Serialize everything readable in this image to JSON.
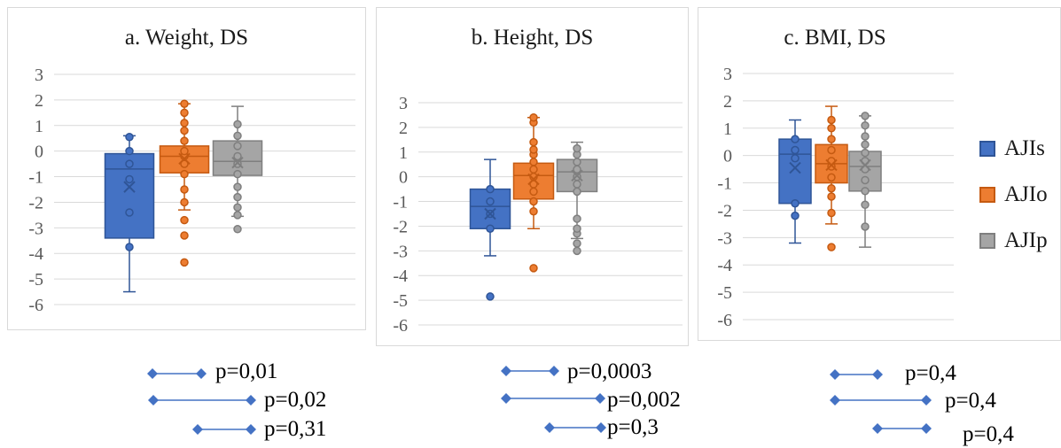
{
  "chart_data": [
    {
      "type": "box",
      "title": "a. Weight, DS",
      "categories": [
        "AJIs",
        "AJIo",
        "AJIp"
      ],
      "ylim": [
        -6,
        3
      ],
      "yticks": [
        "3",
        "2",
        "1",
        "0",
        "-1",
        "-2",
        "-3",
        "-4",
        "-5",
        "-6"
      ],
      "grid": true,
      "series": [
        {
          "name": "AJIs",
          "color": "#4472c4",
          "min": -5.5,
          "q1": -3.4,
          "median": -0.7,
          "q3": -0.1,
          "max": 0.6,
          "mean": -1.4,
          "points": [
            -3.75,
            -2.4,
            -1.1,
            -0.5,
            0.0,
            0.55
          ]
        },
        {
          "name": "AJIo",
          "color": "#ed7d31",
          "min": -2.3,
          "q1": -0.85,
          "median": -0.2,
          "q3": 0.2,
          "max": 1.85,
          "mean": -0.3,
          "points": [
            -4.35,
            -3.3,
            -2.7,
            -2.0,
            -1.5,
            -0.9,
            -0.5,
            -0.2,
            0.0,
            0.4,
            0.8,
            1.1,
            1.5,
            1.85
          ]
        },
        {
          "name": "AJIp",
          "color": "#a5a5a5",
          "min": -2.55,
          "q1": -0.95,
          "median": -0.4,
          "q3": 0.4,
          "max": 1.75,
          "mean": -0.45,
          "points": [
            -3.05,
            -2.5,
            -2.2,
            -1.8,
            -1.4,
            -0.9,
            -0.5,
            -0.2,
            0.2,
            0.6,
            1.05
          ]
        }
      ],
      "significance": [
        {
          "label": "p=0,01",
          "from": "AJIs",
          "to": "AJIo"
        },
        {
          "label": "p=0,02",
          "from": "AJIs",
          "to": "AJIp"
        },
        {
          "label": "p=0,31",
          "from": "AJIo",
          "to": "AJIp"
        }
      ]
    },
    {
      "type": "box",
      "title": "b. Height, DS",
      "categories": [
        "AJIs",
        "AJIo",
        "AJIp"
      ],
      "ylim": [
        -6,
        3
      ],
      "yticks": [
        "3",
        "2",
        "1",
        "0",
        "-1",
        "-2",
        "-3",
        "-4",
        "-5",
        "-6"
      ],
      "grid": true,
      "series": [
        {
          "name": "AJIs",
          "color": "#4472c4",
          "min": -3.2,
          "q1": -2.1,
          "median": -1.2,
          "q3": -0.5,
          "max": 0.7,
          "mean": -1.5,
          "points": [
            -4.85,
            -2.1,
            -1.5,
            -1.0,
            -0.5
          ]
        },
        {
          "name": "AJIo",
          "color": "#ed7d31",
          "min": -2.1,
          "q1": -0.9,
          "median": 0.05,
          "q3": 0.55,
          "max": 2.4,
          "mean": -0.1,
          "points": [
            -3.7,
            -1.4,
            -1.0,
            -0.6,
            -0.3,
            0.0,
            0.3,
            0.6,
            0.9,
            1.1,
            1.4,
            2.2,
            2.4
          ]
        },
        {
          "name": "AJIp",
          "color": "#a5a5a5",
          "min": -2.5,
          "q1": -0.6,
          "median": 0.2,
          "q3": 0.7,
          "max": 1.4,
          "mean": 0.05,
          "points": [
            -3.0,
            -2.7,
            -2.3,
            -2.1,
            -1.7,
            -0.6,
            -0.3,
            0.0,
            0.3,
            0.6,
            0.9,
            1.15
          ]
        }
      ],
      "significance": [
        {
          "label": "p=0,0003",
          "from": "AJIs",
          "to": "AJIo"
        },
        {
          "label": "p=0,002",
          "from": "AJIs",
          "to": "AJIp"
        },
        {
          "label": "p=0,3",
          "from": "AJIo",
          "to": "AJIp"
        }
      ]
    },
    {
      "type": "box",
      "title": "c. BMI, DS",
      "categories": [
        "AJIs",
        "AJIo",
        "AJIp"
      ],
      "ylim": [
        -6,
        3
      ],
      "yticks": [
        "3",
        "2",
        "1",
        "0",
        "-1",
        "-2",
        "-3",
        "-4",
        "-5",
        "-6"
      ],
      "grid": true,
      "legend": "right",
      "series": [
        {
          "name": "AJIs",
          "color": "#4472c4",
          "min": -3.2,
          "q1": -1.75,
          "median": 0.05,
          "q3": 0.6,
          "max": 1.3,
          "mean": -0.45,
          "points": [
            -2.2,
            -1.75,
            -0.1,
            0.2,
            0.6
          ]
        },
        {
          "name": "AJIo",
          "color": "#ed7d31",
          "min": -2.5,
          "q1": -1.0,
          "median": -0.3,
          "q3": 0.4,
          "max": 1.8,
          "mean": -0.35,
          "points": [
            -3.35,
            -2.1,
            -1.5,
            -1.2,
            -0.8,
            -0.4,
            -0.2,
            0.2,
            0.6,
            1.0,
            1.3
          ]
        },
        {
          "name": "AJIp",
          "color": "#a5a5a5",
          "min": -3.35,
          "q1": -1.3,
          "median": -0.4,
          "q3": 0.15,
          "max": 1.45,
          "mean": -0.35,
          "points": [
            -2.6,
            -1.8,
            -1.3,
            -0.9,
            -0.5,
            -0.2,
            0.1,
            0.4,
            0.7,
            1.1,
            1.45
          ]
        }
      ],
      "significance": [
        {
          "label": "p=0,4",
          "from": "AJIs",
          "to": "AJIo"
        },
        {
          "label": "p=0,4",
          "from": "AJIs",
          "to": "AJIp"
        },
        {
          "label": "p=0,4",
          "from": "AJIo",
          "to": "AJIp"
        }
      ]
    }
  ]
}
